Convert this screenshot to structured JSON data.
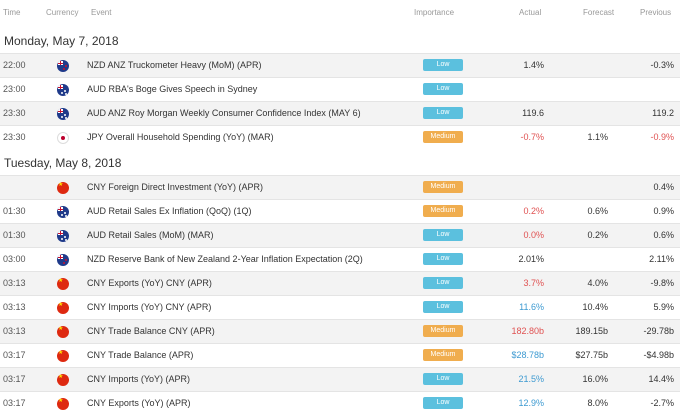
{
  "headers": {
    "time": "Time",
    "currency": "Currency",
    "event": "Event",
    "importance": "Importance",
    "actual": "Actual",
    "forecast": "Forecast",
    "previous": "Previous"
  },
  "colors": {
    "low_badge": "#5bc0de",
    "medium_badge": "#f0ad4e",
    "negative": "#e05252",
    "positive": "#3d9ad1"
  },
  "days": [
    {
      "label": "Monday, May 7, 2018",
      "events": [
        {
          "time": "22:00",
          "flag": "nz-flag-icon",
          "event": "NZD ANZ Truckometer Heavy (MoM) (APR)",
          "importance": "Low",
          "actual": "1.4%",
          "actual_tone": "neutral",
          "forecast": "",
          "previous": "-0.3%",
          "previous_tone": "neutral"
        },
        {
          "time": "23:00",
          "flag": "au-flag-icon",
          "event": "AUD RBA's Boge Gives Speech in Sydney",
          "importance": "Low",
          "actual": "",
          "actual_tone": "neutral",
          "forecast": "",
          "previous": "",
          "previous_tone": "neutral"
        },
        {
          "time": "23:30",
          "flag": "au-flag-icon",
          "event": "AUD ANZ Roy Morgan Weekly Consumer Confidence Index (MAY 6)",
          "importance": "Low",
          "actual": "119.6",
          "actual_tone": "neutral",
          "forecast": "",
          "previous": "119.2",
          "previous_tone": "neutral"
        },
        {
          "time": "23:30",
          "flag": "jp-flag-icon",
          "event": "JPY Overall Household Spending (YoY) (MAR)",
          "importance": "Medium",
          "actual": "-0.7%",
          "actual_tone": "negative",
          "forecast": "1.1%",
          "previous": "-0.9%",
          "previous_tone": "negative"
        }
      ]
    },
    {
      "label": "Tuesday, May 8, 2018",
      "events": [
        {
          "time": "",
          "flag": "cn-flag-icon",
          "event": "CNY Foreign Direct Investment (YoY) (APR)",
          "importance": "Medium",
          "actual": "",
          "actual_tone": "neutral",
          "forecast": "",
          "previous": "0.4%",
          "previous_tone": "neutral"
        },
        {
          "time": "01:30",
          "flag": "au-flag-icon",
          "event": "AUD Retail Sales Ex Inflation (QoQ) (1Q)",
          "importance": "Medium",
          "actual": "0.2%",
          "actual_tone": "negative",
          "forecast": "0.6%",
          "previous": "0.9%",
          "previous_tone": "neutral"
        },
        {
          "time": "01:30",
          "flag": "au-flag-icon",
          "event": "AUD Retail Sales (MoM) (MAR)",
          "importance": "Low",
          "actual": "0.0%",
          "actual_tone": "negative",
          "forecast": "0.2%",
          "previous": "0.6%",
          "previous_tone": "neutral"
        },
        {
          "time": "03:00",
          "flag": "nz-flag-icon",
          "event": "NZD Reserve Bank of New Zealand 2-Year Inflation Expectation (2Q)",
          "importance": "Low",
          "actual": "2.01%",
          "actual_tone": "neutral",
          "forecast": "",
          "previous": "2.11%",
          "previous_tone": "neutral"
        },
        {
          "time": "03:13",
          "flag": "cn-flag-icon",
          "event": "CNY Exports (YoY) CNY (APR)",
          "importance": "Low",
          "actual": "3.7%",
          "actual_tone": "negative",
          "forecast": "4.0%",
          "previous": "-9.8%",
          "previous_tone": "neutral"
        },
        {
          "time": "03:13",
          "flag": "cn-flag-icon",
          "event": "CNY Imports (YoY) CNY (APR)",
          "importance": "Low",
          "actual": "11.6%",
          "actual_tone": "positive",
          "forecast": "10.4%",
          "previous": "5.9%",
          "previous_tone": "neutral"
        },
        {
          "time": "03:13",
          "flag": "cn-flag-icon",
          "event": "CNY Trade Balance CNY (APR)",
          "importance": "Medium",
          "actual": "182.80b",
          "actual_tone": "negative",
          "forecast": "189.15b",
          "previous": "-29.78b",
          "previous_tone": "neutral"
        },
        {
          "time": "03:17",
          "flag": "cn-flag-icon",
          "event": "CNY Trade Balance (APR)",
          "importance": "Medium",
          "actual": "$28.78b",
          "actual_tone": "positive",
          "forecast": "$27.75b",
          "previous": "-$4.98b",
          "previous_tone": "neutral"
        },
        {
          "time": "03:17",
          "flag": "cn-flag-icon",
          "event": "CNY Imports (YoY) (APR)",
          "importance": "Low",
          "actual": "21.5%",
          "actual_tone": "positive",
          "forecast": "16.0%",
          "previous": "14.4%",
          "previous_tone": "neutral"
        },
        {
          "time": "03:17",
          "flag": "cn-flag-icon",
          "event": "CNY Exports (YoY) (APR)",
          "importance": "Low",
          "actual": "12.9%",
          "actual_tone": "positive",
          "forecast": "8.0%",
          "previous": "-2.7%",
          "previous_tone": "neutral"
        }
      ]
    }
  ]
}
